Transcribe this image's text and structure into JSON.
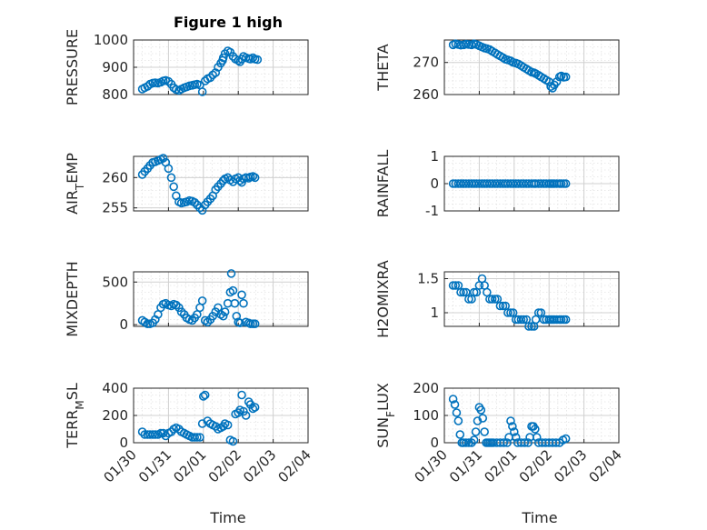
{
  "figure": {
    "title": "Figure 1 high",
    "xlabel": "Time"
  },
  "chart_data": [
    {
      "type": "scatter",
      "ylabel": "PRESSURE",
      "ylabel_sub": "",
      "ylim": [
        800,
        1000
      ],
      "yticks": [
        "800",
        "900",
        "1000"
      ],
      "xticks": [
        "01/30",
        "01/31",
        "02/01",
        "02/02",
        "02/03",
        "02/04"
      ],
      "x": [
        0.25,
        0.32,
        0.4,
        0.47,
        0.55,
        0.62,
        0.7,
        0.78,
        0.85,
        0.92,
        1.0,
        1.08,
        1.15,
        1.22,
        1.3,
        1.37,
        1.45,
        1.52,
        1.6,
        1.68,
        1.75,
        1.82,
        1.9,
        1.97,
        2.05,
        2.12,
        2.2,
        2.27,
        2.35,
        2.42,
        2.5,
        2.55,
        2.57,
        2.62,
        2.7,
        2.77,
        2.85,
        2.92,
        3.0,
        3.05,
        3.1,
        3.15,
        3.22,
        3.3,
        3.35,
        3.42,
        3.48,
        3.55
      ],
      "y": [
        820,
        825,
        830,
        838,
        842,
        843,
        842,
        845,
        850,
        852,
        848,
        838,
        825,
        818,
        815,
        820,
        825,
        828,
        832,
        834,
        836,
        838,
        835,
        810,
        850,
        858,
        862,
        872,
        880,
        900,
        915,
        925,
        935,
        950,
        960,
        955,
        940,
        930,
        925,
        920,
        930,
        940,
        935,
        932,
        930,
        935,
        930,
        928
      ]
    },
    {
      "type": "scatter",
      "ylabel": "THETA",
      "ylabel_sub": "",
      "ylim": [
        260,
        277
      ],
      "yticks": [
        "260",
        "270"
      ],
      "xticks": [
        "01/30",
        "01/31",
        "02/01",
        "02/02",
        "02/03",
        "02/04"
      ],
      "x": [
        0.25,
        0.32,
        0.4,
        0.47,
        0.55,
        0.62,
        0.7,
        0.78,
        0.85,
        0.92,
        1.0,
        1.08,
        1.15,
        1.22,
        1.3,
        1.37,
        1.45,
        1.52,
        1.6,
        1.68,
        1.75,
        1.82,
        1.9,
        1.97,
        2.05,
        2.12,
        2.2,
        2.27,
        2.35,
        2.42,
        2.5,
        2.57,
        2.62,
        2.7,
        2.77,
        2.85,
        2.92,
        3.0,
        3.05,
        3.1,
        3.15,
        3.22,
        3.3,
        3.35,
        3.42,
        3.48
      ],
      "y": [
        275.5,
        275.8,
        275.6,
        275.4,
        275.5,
        275.7,
        275.6,
        275.5,
        275.8,
        275.6,
        275.2,
        274.8,
        274.5,
        274.3,
        274.0,
        273.5,
        273.0,
        272.5,
        272.0,
        271.5,
        271.0,
        270.8,
        270.5,
        270.0,
        269.8,
        269.5,
        269.0,
        268.5,
        268.0,
        267.5,
        267.0,
        266.8,
        266.5,
        266.0,
        265.5,
        265.0,
        264.5,
        264.0,
        262.5,
        262.0,
        263.0,
        264.0,
        265.5,
        265.8,
        265.4,
        265.5
      ]
    },
    {
      "type": "scatter",
      "ylabel": "AIR",
      "ylabel_sub": "T",
      "ylabel_after": "EMP",
      "ylim": [
        254.5,
        263.5
      ],
      "yticks": [
        "255",
        "260"
      ],
      "xticks": [
        "01/30",
        "01/31",
        "02/01",
        "02/02",
        "02/03",
        "02/04"
      ],
      "x": [
        0.25,
        0.32,
        0.4,
        0.47,
        0.55,
        0.62,
        0.7,
        0.78,
        0.85,
        0.92,
        1.0,
        1.08,
        1.15,
        1.22,
        1.3,
        1.37,
        1.45,
        1.52,
        1.6,
        1.68,
        1.75,
        1.82,
        1.9,
        1.97,
        2.05,
        2.12,
        2.2,
        2.27,
        2.35,
        2.42,
        2.5,
        2.57,
        2.62,
        2.7,
        2.77,
        2.85,
        2.92,
        3.0,
        3.05,
        3.1,
        3.15,
        3.22,
        3.3,
        3.35,
        3.42,
        3.48
      ],
      "y": [
        260.5,
        261,
        261.5,
        262,
        262.5,
        262.6,
        262.8,
        263,
        263.2,
        262.5,
        261.5,
        260,
        258.5,
        257,
        256,
        255.8,
        255.9,
        256,
        256.2,
        256.1,
        255.9,
        255.5,
        255,
        254.6,
        255.5,
        256,
        256.5,
        257,
        258,
        258.5,
        259,
        259.5,
        259.8,
        260,
        259.6,
        259.3,
        259.8,
        260,
        259.5,
        259.2,
        259.8,
        260,
        259.9,
        260.1,
        260.2,
        260
      ]
    },
    {
      "type": "scatter",
      "ylabel": "RAINFALL",
      "ylabel_sub": "",
      "ylim": [
        -1,
        1
      ],
      "yticks": [
        "-1",
        "0",
        "1"
      ],
      "xticks": [
        "01/30",
        "01/31",
        "02/01",
        "02/02",
        "02/03",
        "02/04"
      ],
      "x": [
        0.25,
        0.32,
        0.4,
        0.47,
        0.55,
        0.62,
        0.7,
        0.78,
        0.85,
        0.92,
        1.0,
        1.08,
        1.15,
        1.22,
        1.3,
        1.37,
        1.45,
        1.52,
        1.6,
        1.68,
        1.75,
        1.82,
        1.9,
        1.97,
        2.05,
        2.12,
        2.2,
        2.27,
        2.35,
        2.42,
        2.5,
        2.57,
        2.62,
        2.7,
        2.77,
        2.85,
        2.92,
        3.0,
        3.05,
        3.1,
        3.15,
        3.22,
        3.3,
        3.35,
        3.42,
        3.48
      ],
      "y": [
        0,
        0,
        0,
        0,
        0,
        0,
        0,
        0,
        0,
        0,
        0,
        0,
        0,
        0,
        0,
        0,
        0,
        0,
        0,
        0,
        0,
        0,
        0,
        0,
        0,
        0,
        0,
        0,
        0,
        0,
        0,
        0,
        0,
        0,
        0,
        0,
        0,
        0,
        0,
        0,
        0,
        0,
        0,
        0,
        0,
        0
      ]
    },
    {
      "type": "scatter",
      "ylabel": "MIXDEPTH",
      "ylabel_sub": "",
      "ylim": [
        -20,
        620
      ],
      "yticks": [
        "0",
        "500"
      ],
      "xticks": [
        "01/30",
        "01/31",
        "02/01",
        "02/02",
        "02/03",
        "02/04"
      ],
      "x": [
        0.25,
        0.32,
        0.4,
        0.47,
        0.55,
        0.62,
        0.7,
        0.78,
        0.85,
        0.92,
        1.0,
        1.08,
        1.15,
        1.22,
        1.3,
        1.37,
        1.45,
        1.52,
        1.6,
        1.68,
        1.75,
        1.82,
        1.9,
        1.97,
        2.05,
        2.12,
        2.2,
        2.27,
        2.35,
        2.42,
        2.5,
        2.57,
        2.62,
        2.7,
        2.77,
        2.8,
        2.85,
        2.9,
        2.95,
        3.0,
        3.05,
        3.1,
        3.15,
        3.22,
        3.3,
        3.35,
        3.42,
        3.48
      ],
      "y": [
        50,
        30,
        10,
        10,
        20,
        60,
        120,
        200,
        240,
        250,
        230,
        220,
        240,
        230,
        200,
        150,
        120,
        80,
        60,
        50,
        80,
        120,
        200,
        280,
        50,
        30,
        60,
        100,
        150,
        200,
        120,
        100,
        150,
        250,
        380,
        600,
        400,
        250,
        100,
        30,
        20,
        350,
        250,
        30,
        20,
        10,
        10,
        10
      ]
    },
    {
      "type": "scatter",
      "ylabel": "H2OMIXRA",
      "ylabel_sub": "",
      "ylim": [
        0.8,
        1.6
      ],
      "yticks": [
        "1",
        "1.5"
      ],
      "xticks": [
        "01/30",
        "01/31",
        "02/01",
        "02/02",
        "02/03",
        "02/04"
      ],
      "x": [
        0.25,
        0.32,
        0.4,
        0.47,
        0.55,
        0.62,
        0.7,
        0.78,
        0.85,
        0.92,
        1.0,
        1.08,
        1.15,
        1.22,
        1.3,
        1.37,
        1.45,
        1.52,
        1.6,
        1.68,
        1.75,
        1.82,
        1.9,
        1.97,
        2.05,
        2.12,
        2.2,
        2.27,
        2.35,
        2.42,
        2.5,
        2.57,
        2.62,
        2.7,
        2.77,
        2.85,
        2.92,
        3.0,
        3.05,
        3.1,
        3.15,
        3.22,
        3.3,
        3.35,
        3.42,
        3.48
      ],
      "y": [
        1.4,
        1.4,
        1.4,
        1.3,
        1.3,
        1.3,
        1.2,
        1.2,
        1.3,
        1.3,
        1.4,
        1.5,
        1.4,
        1.3,
        1.2,
        1.2,
        1.2,
        1.2,
        1.1,
        1.1,
        1.1,
        1.0,
        1.0,
        1.0,
        0.9,
        0.9,
        0.9,
        0.9,
        0.9,
        0.8,
        0.8,
        0.8,
        0.9,
        1.0,
        1.0,
        0.9,
        0.9,
        0.9,
        0.9,
        0.9,
        0.9,
        0.9,
        0.9,
        0.9,
        0.9,
        0.9
      ]
    },
    {
      "type": "scatter",
      "ylabel": "TERR",
      "ylabel_sub": "M",
      "ylabel_after": "SL",
      "ylim": [
        0,
        400
      ],
      "yticks": [
        "0",
        "200",
        "400"
      ],
      "xticks": [
        "01/30",
        "01/31",
        "02/01",
        "02/02",
        "02/03",
        "02/04"
      ],
      "x": [
        0.25,
        0.32,
        0.4,
        0.47,
        0.55,
        0.62,
        0.7,
        0.78,
        0.85,
        0.92,
        1.0,
        1.08,
        1.15,
        1.22,
        1.3,
        1.37,
        1.45,
        1.52,
        1.6,
        1.68,
        1.75,
        1.82,
        1.9,
        1.97,
        2.0,
        2.05,
        2.12,
        2.2,
        2.27,
        2.35,
        2.42,
        2.5,
        2.57,
        2.62,
        2.7,
        2.77,
        2.85,
        2.92,
        3.0,
        3.05,
        3.1,
        3.15,
        3.22,
        3.3,
        3.35,
        3.42,
        3.48
      ],
      "y": [
        80,
        60,
        60,
        60,
        60,
        60,
        60,
        70,
        70,
        50,
        70,
        80,
        100,
        110,
        100,
        80,
        70,
        60,
        50,
        40,
        40,
        40,
        40,
        140,
        340,
        350,
        160,
        140,
        130,
        120,
        100,
        110,
        120,
        140,
        130,
        20,
        10,
        210,
        220,
        240,
        350,
        230,
        200,
        300,
        280,
        250,
        260
      ]
    },
    {
      "type": "scatter",
      "ylabel": "SUN",
      "ylabel_sub": "F",
      "ylabel_after": "LUX",
      "ylim": [
        0,
        200
      ],
      "yticks": [
        "0",
        "100",
        "200"
      ],
      "xticks": [
        "01/30",
        "01/31",
        "02/01",
        "02/02",
        "02/03",
        "02/04"
      ],
      "x": [
        0.25,
        0.3,
        0.35,
        0.4,
        0.45,
        0.5,
        0.55,
        0.62,
        0.7,
        0.78,
        0.85,
        0.9,
        0.95,
        1.0,
        1.05,
        1.1,
        1.15,
        1.2,
        1.25,
        1.3,
        1.35,
        1.4,
        1.5,
        1.6,
        1.7,
        1.8,
        1.85,
        1.9,
        1.95,
        2.0,
        2.05,
        2.1,
        2.2,
        2.3,
        2.4,
        2.45,
        2.5,
        2.55,
        2.6,
        2.65,
        2.7,
        2.8,
        2.9,
        3.0,
        3.1,
        3.2,
        3.3,
        3.4,
        3.48
      ],
      "y": [
        160,
        140,
        110,
        80,
        30,
        0,
        0,
        0,
        0,
        0,
        10,
        40,
        80,
        130,
        120,
        90,
        40,
        0,
        0,
        0,
        0,
        0,
        0,
        0,
        0,
        0,
        20,
        80,
        60,
        40,
        20,
        0,
        0,
        0,
        0,
        20,
        60,
        60,
        50,
        20,
        0,
        0,
        0,
        0,
        0,
        0,
        0,
        10,
        15
      ]
    }
  ]
}
